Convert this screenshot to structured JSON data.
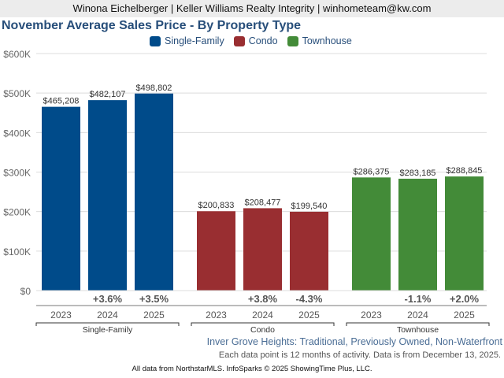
{
  "header": {
    "agent_line": "Winona Eichelberger | Keller Williams Realty Integrity | winhometeam@kw.com"
  },
  "chart_data": {
    "type": "bar",
    "title": "November Average Sales Price - By Property Type",
    "xlabel": "",
    "ylabel": "",
    "ylim": [
      0,
      600000
    ],
    "yticks": [
      0,
      100000,
      200000,
      300000,
      400000,
      500000,
      600000
    ],
    "ytick_labels": [
      "$0",
      "$100K",
      "$200K",
      "$300K",
      "$400K",
      "$500K",
      "$600K"
    ],
    "grid": true,
    "legend_position": "top-center",
    "legend": [
      "Single-Family",
      "Condo",
      "Townhouse"
    ],
    "groups": [
      {
        "name": "Single-Family",
        "color": "#004b8a",
        "categories": [
          "2023",
          "2024",
          "2025"
        ],
        "values": [
          465208,
          482107,
          498802
        ],
        "value_labels": [
          "$465,208",
          "$482,107",
          "$498,802"
        ],
        "change_labels": [
          "",
          "+3.6%",
          "+3.5%"
        ]
      },
      {
        "name": "Condo",
        "color": "#992e31",
        "categories": [
          "2023",
          "2024",
          "2025"
        ],
        "values": [
          200833,
          208477,
          199540
        ],
        "value_labels": [
          "$200,833",
          "$208,477",
          "$199,540"
        ],
        "change_labels": [
          "",
          "+3.8%",
          "-4.3%"
        ]
      },
      {
        "name": "Townhouse",
        "color": "#438b38",
        "categories": [
          "2023",
          "2024",
          "2025"
        ],
        "values": [
          286375,
          283185,
          288845
        ],
        "value_labels": [
          "$286,375",
          "$283,185",
          "$288,845"
        ],
        "change_labels": [
          "",
          "-1.1%",
          "+2.0%"
        ]
      }
    ]
  },
  "footer": {
    "region": "Inver Grove Heights: Traditional, Previously Owned, Non-Waterfront",
    "note": "Each data point is 12 months of activity. Data is from December 13, 2025.",
    "credit": "All data from NorthstarMLS. InfoSparks © 2025 ShowingTime Plus, LLC."
  }
}
